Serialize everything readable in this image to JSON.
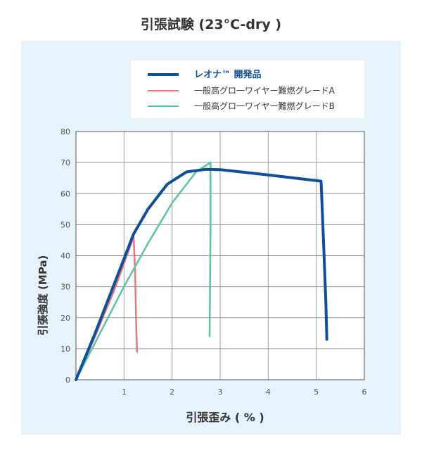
{
  "title": "引張試験 (23°C-dry )",
  "chart_data": {
    "type": "line",
    "xlabel": "引張歪み ( % )",
    "ylabel": "引張強度 (MPa)",
    "xlim": [
      0,
      6
    ],
    "ylim": [
      0,
      80
    ],
    "x_ticks": [
      "1",
      "2",
      "3",
      "4",
      "5",
      "6"
    ],
    "y_ticks": [
      "0",
      "10",
      "20",
      "30",
      "40",
      "50",
      "60",
      "70",
      "80"
    ],
    "grid": true,
    "legend_placement": "top",
    "series": [
      {
        "name": "レオナ™ 開発品",
        "color": "#0d4f9c",
        "x": [
          0,
          0.4,
          0.8,
          1.2,
          1.5,
          1.9,
          2.3,
          2.7,
          3.0,
          4.0,
          5.1,
          5.15,
          5.2,
          5.22
        ],
        "y": [
          0,
          15,
          31,
          47,
          55,
          63,
          67,
          67.8,
          67.7,
          66,
          64,
          45,
          25,
          13
        ]
      },
      {
        "name": "一般高グロ一ワイヤー難燃グレードA",
        "color": "#e8787a",
        "x": [
          0,
          0.4,
          0.8,
          1.2,
          1.23,
          1.25,
          1.27
        ],
        "y": [
          0,
          14,
          29,
          46,
          35,
          20,
          9
        ]
      },
      {
        "name": "一般高グロ一ワイヤー難燃グレードB",
        "color": "#5cc1a6",
        "x": [
          0,
          0.5,
          1.0,
          1.5,
          2.0,
          2.5,
          2.8,
          2.8,
          2.79,
          2.78
        ],
        "y": [
          0,
          15,
          30,
          44,
          57,
          67,
          70,
          50,
          30,
          14
        ]
      }
    ]
  }
}
